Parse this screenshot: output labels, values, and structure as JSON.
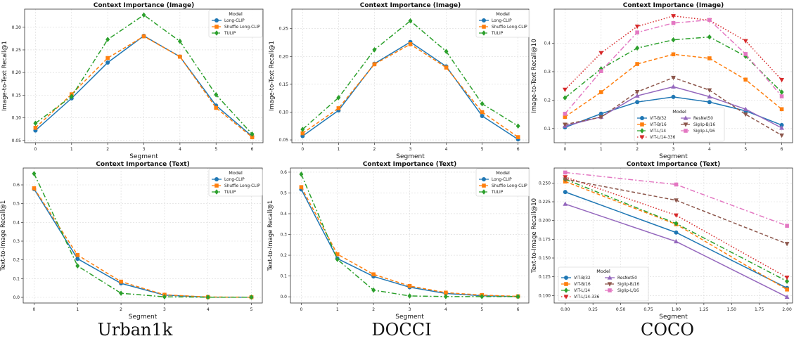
{
  "colors": {
    "Long-CLIP": "#1f77b4",
    "Shuffle Long-CLIP": "#ff7f0e",
    "TULIP": "#2ca02c",
    "ViT-B/32": "#1f77b4",
    "ViT-B/16": "#ff7f0e",
    "ViT-L/14": "#2ca02c",
    "ViT-L/14-336": "#d62728",
    "ResNet50": "#9467bd",
    "Siglip-B/16": "#8c564b",
    "Siglip-L/16": "#e377c2"
  },
  "captions": [
    "Urban1k",
    "DOCCI",
    "COCO"
  ],
  "chart_data": [
    {
      "type": "line",
      "title": "Context Importance (Image)",
      "xlabel": "Segment",
      "ylabel": "Image-to-Text Recall@1",
      "x": [
        0,
        1,
        2,
        3,
        4,
        5,
        6
      ],
      "xticks": [
        "0",
        "1",
        "2",
        "3",
        "4",
        "5",
        "6"
      ],
      "ylim": [
        0.045,
        0.34
      ],
      "yticks": [
        "0.05",
        "0.10",
        "0.15",
        "0.20",
        "0.25",
        "0.30"
      ],
      "legend_title": "Model",
      "legend_position": "top-right",
      "series": [
        {
          "name": "Long-CLIP",
          "values": [
            0.072,
            0.143,
            0.222,
            0.281,
            0.235,
            0.127,
            0.059
          ]
        },
        {
          "name": "Shuffle Long-CLIP",
          "values": [
            0.078,
            0.152,
            0.232,
            0.28,
            0.235,
            0.122,
            0.057
          ]
        },
        {
          "name": "TULIP",
          "values": [
            0.088,
            0.147,
            0.273,
            0.327,
            0.269,
            0.151,
            0.064
          ]
        }
      ]
    },
    {
      "type": "line",
      "title": "Context Importance (Image)",
      "xlabel": "Segment",
      "ylabel": "Image-to-Text Recall@1",
      "x": [
        0,
        1,
        2,
        3,
        4,
        5,
        6
      ],
      "xticks": [
        "0",
        "1",
        "2",
        "3",
        "4",
        "5",
        "6"
      ],
      "ylim": [
        0.045,
        0.285
      ],
      "yticks": [
        "0.05",
        "0.10",
        "0.15",
        "0.20",
        "0.25"
      ],
      "legend_title": "Model",
      "legend_position": "top-right",
      "series": [
        {
          "name": "Long-CLIP",
          "values": [
            0.057,
            0.103,
            0.187,
            0.226,
            0.182,
            0.093,
            0.051
          ]
        },
        {
          "name": "Shuffle Long-CLIP",
          "values": [
            0.062,
            0.107,
            0.186,
            0.222,
            0.18,
            0.1,
            0.055
          ]
        },
        {
          "name": "TULIP",
          "values": [
            0.069,
            0.126,
            0.212,
            0.264,
            0.209,
            0.115,
            0.075
          ]
        }
      ]
    },
    {
      "type": "line",
      "title": "Context Importance (Image)",
      "xlabel": "Segment",
      "ylabel": "Image-to-Text Recall@10",
      "x": [
        0,
        1,
        2,
        3,
        4,
        5,
        6
      ],
      "xticks": [
        "0",
        "1",
        "2",
        "3",
        "4",
        "5",
        "6"
      ],
      "ylim": [
        0.05,
        0.52
      ],
      "yticks": [
        "0.1",
        "0.2",
        "0.3",
        "0.4"
      ],
      "legend_title": "Model",
      "legend_position": "lower-center",
      "series": [
        {
          "name": "ViT-B/32",
          "values": [
            0.104,
            0.152,
            0.193,
            0.211,
            0.193,
            0.162,
            0.112
          ]
        },
        {
          "name": "ViT-B/16",
          "values": [
            0.141,
            0.228,
            0.327,
            0.361,
            0.347,
            0.272,
            0.168
          ]
        },
        {
          "name": "ViT-L/14",
          "values": [
            0.208,
            0.31,
            0.383,
            0.412,
            0.422,
            0.354,
            0.228
          ]
        },
        {
          "name": "ViT-L/14-336",
          "values": [
            0.237,
            0.366,
            0.459,
            0.496,
            0.481,
            0.408,
            0.271
          ]
        },
        {
          "name": "ResNet50",
          "values": [
            0.109,
            0.141,
            0.215,
            0.247,
            0.212,
            0.168,
            0.102
          ]
        },
        {
          "name": "Siglip-B/16",
          "values": [
            0.114,
            0.14,
            0.229,
            0.279,
            0.235,
            0.15,
            0.076
          ]
        },
        {
          "name": "Siglip-L/16",
          "values": [
            0.152,
            0.302,
            0.438,
            0.471,
            0.482,
            0.362,
            0.213
          ]
        }
      ]
    },
    {
      "type": "line",
      "title": "Context Importance (Text)",
      "xlabel": "Segment",
      "ylabel": "Text-to-Image Recall@1",
      "x": [
        0,
        1,
        2,
        3,
        4,
        5
      ],
      "xticks": [
        "0",
        "1",
        "2",
        "3",
        "4",
        "5"
      ],
      "ylim": [
        -0.03,
        0.69
      ],
      "yticks": [
        "0.0",
        "0.1",
        "0.2",
        "0.3",
        "0.4",
        "0.5",
        "0.6"
      ],
      "legend_title": "Model",
      "legend_position": "top-right",
      "series": [
        {
          "name": "Long-CLIP",
          "values": [
            0.578,
            0.206,
            0.075,
            0.012,
            0.001,
            0.001
          ]
        },
        {
          "name": "Shuffle Long-CLIP",
          "values": [
            0.582,
            0.226,
            0.084,
            0.014,
            0.002,
            0.001
          ]
        },
        {
          "name": "TULIP",
          "values": [
            0.66,
            0.168,
            0.022,
            0.003,
            0.001,
            0.001
          ]
        }
      ]
    },
    {
      "type": "line",
      "title": "Context Importance (Text)",
      "xlabel": "Segment",
      "ylabel": "Text-to-Image Recall@1",
      "x": [
        0,
        1,
        2,
        3,
        4,
        5,
        6
      ],
      "xticks": [
        "0",
        "1",
        "2",
        "3",
        "4",
        "5",
        "6"
      ],
      "ylim": [
        -0.03,
        0.62
      ],
      "yticks": [
        "0.0",
        "0.1",
        "0.2",
        "0.3",
        "0.4",
        "0.5",
        "0.6"
      ],
      "legend_title": "Model",
      "legend_position": "top-right",
      "series": [
        {
          "name": "Long-CLIP",
          "values": [
            0.517,
            0.184,
            0.098,
            0.046,
            0.016,
            0.005,
            0.001
          ]
        },
        {
          "name": "Shuffle Long-CLIP",
          "values": [
            0.528,
            0.205,
            0.108,
            0.052,
            0.02,
            0.008,
            0.002
          ]
        },
        {
          "name": "TULIP",
          "values": [
            0.59,
            0.18,
            0.032,
            0.004,
            0.001,
            0.001,
            0.001
          ]
        }
      ]
    },
    {
      "type": "line",
      "title": "Context Importance (Text)",
      "xlabel": "Segment",
      "ylabel": "Text-to-Image Recall@10",
      "x": [
        0,
        1,
        2
      ],
      "xlim": [
        -0.1,
        2.05
      ],
      "xtick_values": [
        0,
        0.25,
        0.5,
        0.75,
        1.0,
        1.25,
        1.5,
        1.75,
        2.0
      ],
      "xticks": [
        "0.00",
        "0.25",
        "0.50",
        "0.75",
        "1.00",
        "1.25",
        "1.50",
        "1.75",
        "2.00"
      ],
      "ylim": [
        0.09,
        0.27
      ],
      "ytick_values": [
        0.1,
        0.125,
        0.15,
        0.175,
        0.2,
        0.225,
        0.25
      ],
      "yticks": [
        "0.100",
        "0.125",
        "0.150",
        "0.175",
        "0.200",
        "0.225",
        "0.250"
      ],
      "legend_title": "Model",
      "legend_position": "lower-left",
      "series": [
        {
          "name": "ViT-B/32",
          "values": [
            0.238,
            0.184,
            0.11
          ]
        },
        {
          "name": "ViT-B/16",
          "values": [
            0.252,
            0.195,
            0.108
          ]
        },
        {
          "name": "ViT-L/14",
          "values": [
            0.255,
            0.196,
            0.119
          ]
        },
        {
          "name": "ViT-L/14-336",
          "values": [
            0.258,
            0.207,
            0.124
          ]
        },
        {
          "name": "ResNet50",
          "values": [
            0.222,
            0.172,
            0.098
          ]
        },
        {
          "name": "Siglip-B/16",
          "values": [
            0.255,
            0.227,
            0.169
          ]
        },
        {
          "name": "Siglip-L/16",
          "values": [
            0.264,
            0.248,
            0.193
          ]
        }
      ]
    }
  ]
}
